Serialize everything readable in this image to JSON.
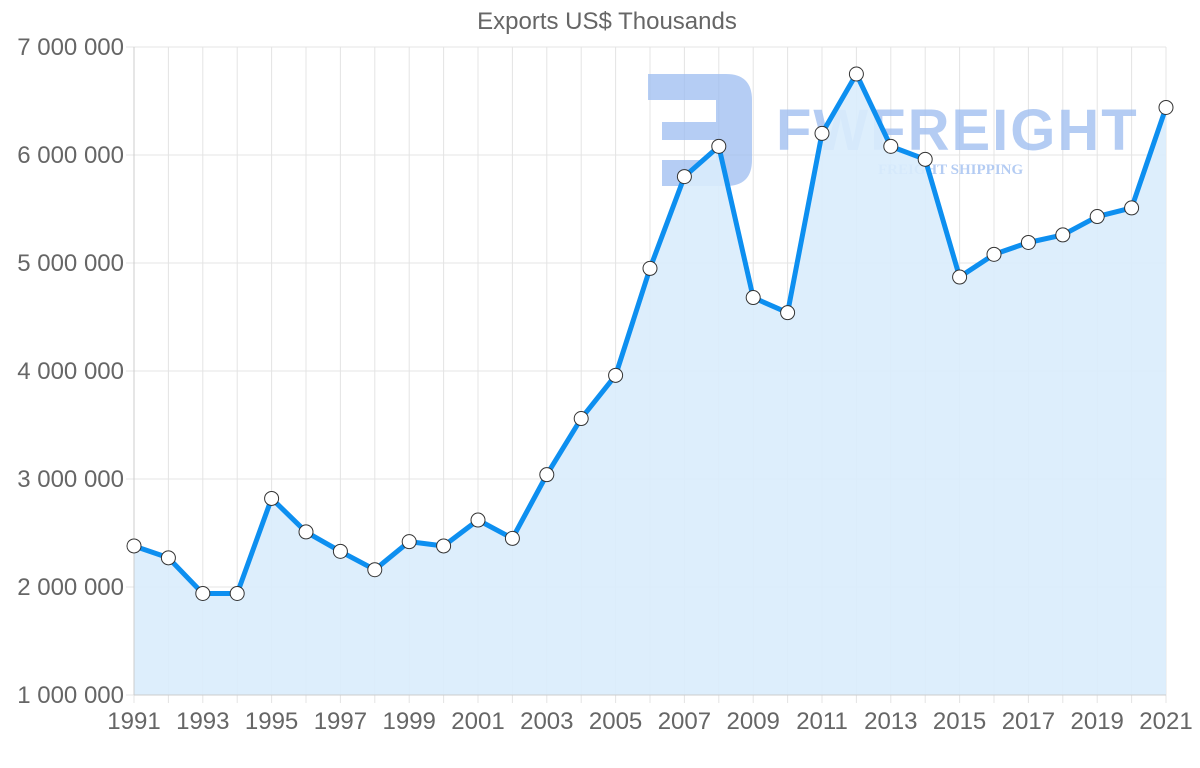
{
  "chart_data": {
    "type": "area",
    "title": "Exports US$ Thousands",
    "xlabel": "",
    "ylabel": "",
    "ylim": [
      1000000,
      7000000
    ],
    "yticks": [
      1000000,
      2000000,
      3000000,
      4000000,
      5000000,
      6000000,
      7000000
    ],
    "ytick_labels": [
      "1 000 000",
      "2 000 000",
      "3 000 000",
      "4 000 000",
      "5 000 000",
      "6 000 000",
      "7 000 000"
    ],
    "xtick_labels": [
      "1991",
      "1993",
      "1995",
      "1997",
      "1999",
      "2001",
      "2003",
      "2005",
      "2007",
      "2009",
      "2011",
      "2013",
      "2015",
      "2017",
      "2019",
      "2021"
    ],
    "grid": true,
    "legend": null,
    "x": [
      1991,
      1992,
      1993,
      1994,
      1995,
      1996,
      1997,
      1998,
      1999,
      2000,
      2001,
      2002,
      2003,
      2004,
      2005,
      2006,
      2007,
      2008,
      2009,
      2010,
      2011,
      2012,
      2013,
      2014,
      2015,
      2016,
      2017,
      2018,
      2019,
      2020,
      2021
    ],
    "series": [
      {
        "name": "Exports US$ Thousands",
        "values": [
          2380000,
          2270000,
          1940000,
          1940000,
          2820000,
          2510000,
          2330000,
          2160000,
          2420000,
          2380000,
          2620000,
          2450000,
          3040000,
          3560000,
          3960000,
          4950000,
          5800000,
          6080000,
          4680000,
          4540000,
          6200000,
          6750000,
          6080000,
          5960000,
          4870000,
          5080000,
          5190000,
          5260000,
          5430000,
          5510000,
          6440000
        ]
      }
    ]
  },
  "colors": {
    "line": "#0d8ff0",
    "fill": "#d9ecfc",
    "grid": "#e4e4e4",
    "axis": "#cccccc",
    "text": "#666666",
    "marker_fill": "#ffffff",
    "marker_stroke": "#333333",
    "watermark": "#9cbcf0"
  },
  "watermark": {
    "brand": "FWFREIGHT",
    "tagline": "FREIGHT SHIPPING"
  }
}
